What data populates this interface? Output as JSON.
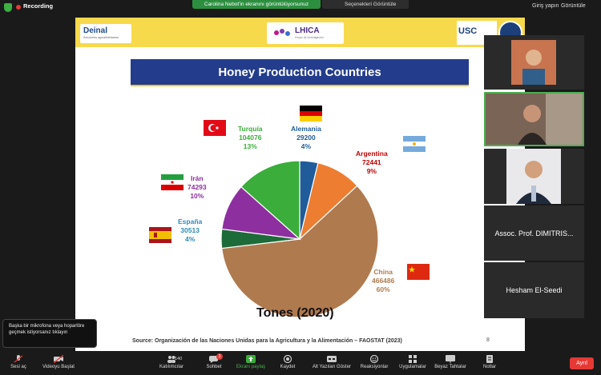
{
  "top_bar": {
    "recording_label": "Recording",
    "share_banner": "Carolina Nebot'in ekranını görüntülüyorsunuz",
    "view_options": "Seçenekleri Görüntüle",
    "sign_in": "Giriş yapın",
    "view": "Görüntüle"
  },
  "slide": {
    "logos": {
      "deinal": "Deinal",
      "deinal_sub": "Soluciones agroalimentarias",
      "lhica": "LHICA",
      "lhica_sub": "Grupo de investigación",
      "usc": "USC"
    },
    "title": "Honey Production Countries",
    "caption": "Tones (2020)",
    "source": "Source: Organización de las Naciones Unidas para la Agricultura y la Alimentación – FAOSTAT (2023)",
    "page_number": "8"
  },
  "chart_data": {
    "type": "pie",
    "title": "Honey Production Countries",
    "unit": "Tones (2020)",
    "slices": [
      {
        "name": "Alemania",
        "value": 29200,
        "value_label": "29200",
        "percent": "4%",
        "color": "#1f5c99",
        "flag": "germany"
      },
      {
        "name": "Argentina",
        "value": 72441,
        "value_label": "72441",
        "percent": "9%",
        "color": "#ed7d31",
        "flag": "argentina"
      },
      {
        "name": "China",
        "value": 466486,
        "value_label": "466486",
        "percent": "60%",
        "color": "#b07a4f",
        "flag": "china"
      },
      {
        "name": "España",
        "value": 30513,
        "value_label": "30513",
        "percent": "4%",
        "color": "#1e6b3a",
        "flag": "spain"
      },
      {
        "name": "Irán",
        "value": 74293,
        "value_label": "74293",
        "percent": "10%",
        "color": "#8e2fa0",
        "flag": "iran"
      },
      {
        "name": "Turquía",
        "value": 104076,
        "value_label": "104076",
        "percent": "13%",
        "color": "#3aad3a",
        "flag": "turkey"
      }
    ],
    "label_colors": {
      "Alemania": "#1f5c99",
      "Argentina": "#c00000",
      "China": "#b07a4f",
      "España": "#2e8bb8",
      "Irán": "#8e2fa0",
      "Turquía": "#3aad3a"
    }
  },
  "participants": [
    {
      "name": ""
    },
    {
      "name": ""
    },
    {
      "name": ""
    },
    {
      "name": "Assoc. Prof. DIMITRIS..."
    },
    {
      "name": "Hesham El-Seedi"
    }
  ],
  "tooltip": "Başka bir mikrofona veya hoparlöre geçmek istiyorsanız tıklayın",
  "toolbar": {
    "unmute": "Sesi aç",
    "start_video": "Videoyu Başlat",
    "participants": "Katılımcılar",
    "participants_count": "140",
    "chat": "Sohbet",
    "chat_badge": "3",
    "share_screen": "Ekranı paylaş",
    "record": "Kaydet",
    "captions": "Alt Yazıları Göster",
    "reactions": "Reaksiyonlar",
    "apps": "Uygulamalar",
    "whiteboards": "Beyaz Tahtalar",
    "notes": "Notlar",
    "leave": "Ayrıl"
  }
}
